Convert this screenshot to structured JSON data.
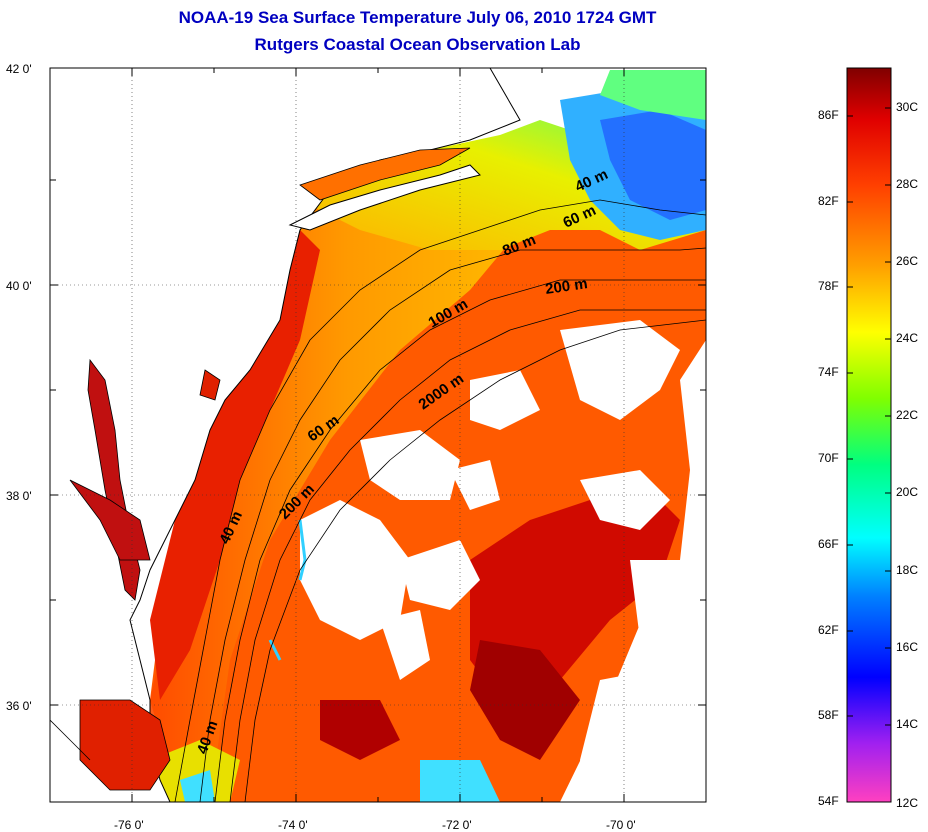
{
  "title": {
    "line1": "NOAA-19 Sea Surface Temperature July 06, 2010 1724 GMT",
    "line2": "Rutgers Coastal Ocean Observation Lab"
  },
  "axes": {
    "lon_labels": [
      "-76 0'",
      "-74 0'",
      "-72 0'",
      "-70 0'"
    ],
    "lat_labels": [
      "42 0'",
      "40 0'",
      "38 0'",
      "36 0'"
    ]
  },
  "depth_contours": {
    "labels": [
      "40 m",
      "60 m",
      "80 m",
      "100 m",
      "200 m",
      "2000 m",
      "60 m",
      "200 m",
      "40 m",
      "40 m"
    ]
  },
  "colorbar": {
    "fahrenheit": [
      "86F",
      "82F",
      "78F",
      "74F",
      "70F",
      "66F",
      "62F",
      "58F",
      "54F"
    ],
    "celsius": [
      "30C",
      "28C",
      "26C",
      "24C",
      "22C",
      "20C",
      "18C",
      "16C",
      "14C",
      "12C"
    ],
    "colors": [
      "#ff40c0",
      "#a020f0",
      "#0000ff",
      "#0080ff",
      "#00ffff",
      "#00ff80",
      "#80ff00",
      "#ffff00",
      "#ffa000",
      "#ff4000",
      "#e00000",
      "#800000"
    ]
  },
  "colors": {
    "title": "#0000c0",
    "cloud_mask": "#ffffff",
    "land": "#ffffff"
  }
}
